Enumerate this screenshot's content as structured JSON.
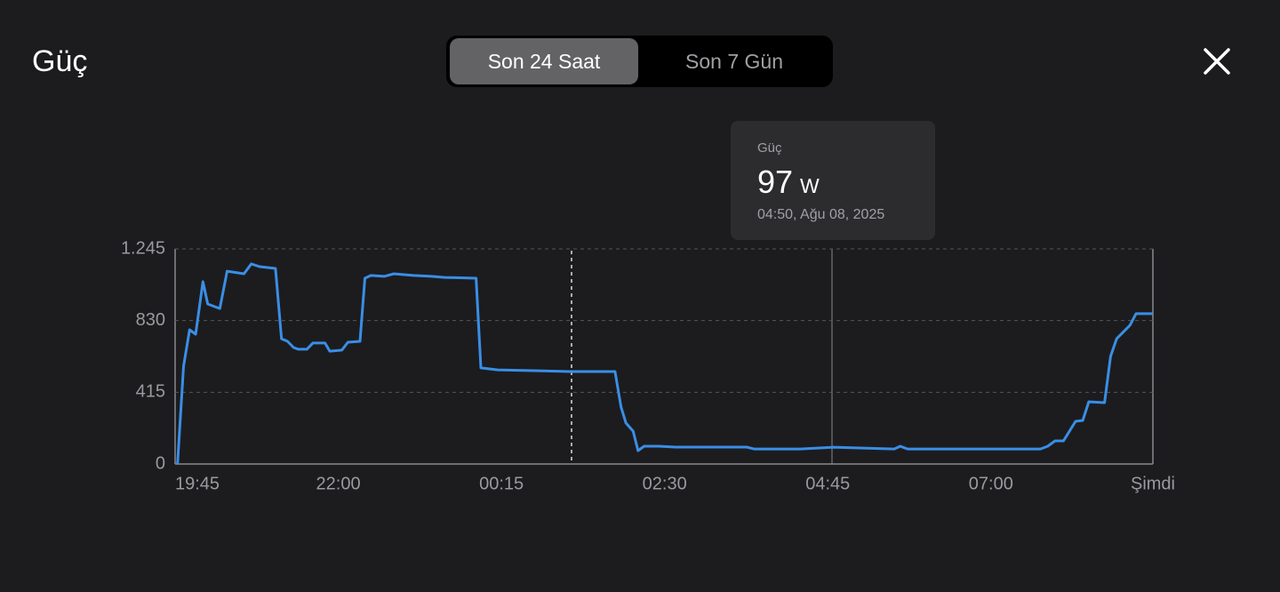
{
  "header": {
    "title": "Güç",
    "segments": [
      "Son 24 Saat",
      "Son 7 Gün"
    ]
  },
  "tooltip": {
    "label": "Güç",
    "value": 97,
    "unit": "W",
    "date": "04:50, Ağu 08, 2025"
  },
  "chart_data": {
    "type": "line",
    "color": "#3a8ee6",
    "grid": true,
    "x": [
      "19:47",
      "19:52",
      "19:57",
      "20:02",
      "20:08",
      "20:12",
      "20:22",
      "20:28",
      "20:42",
      "20:48",
      "20:55",
      "21:08",
      "21:13",
      "21:18",
      "21:23",
      "21:27",
      "21:34",
      "21:39",
      "21:49",
      "21:53",
      "22:03",
      "22:08",
      "22:18",
      "22:22",
      "22:27",
      "22:38",
      "22:46",
      "23:02",
      "23:17",
      "23:28",
      "23:54",
      "23:58",
      "00:12",
      "00:42",
      "01:11",
      "01:40",
      "01:49",
      "01:54",
      "01:58",
      "02:04",
      "02:08",
      "02:13",
      "02:25",
      "02:39",
      "03:09",
      "03:38",
      "03:44",
      "04:22",
      "04:50",
      "05:40",
      "05:45",
      "05:51",
      "06:50",
      "07:41",
      "07:47",
      "07:53",
      "08:00",
      "08:10",
      "08:16",
      "08:21",
      "08:34",
      "08:39",
      "08:44",
      "08:55",
      "09:00",
      "09:14"
    ],
    "values": [
      0,
      566,
      777,
      751,
      1055,
      926,
      900,
      1116,
      1101,
      1158,
      1142,
      1132,
      725,
      710,
      674,
      664,
      664,
      700,
      700,
      653,
      659,
      705,
      710,
      1075,
      1091,
      1086,
      1101,
      1091,
      1086,
      1080,
      1075,
      556,
      545,
      540,
      535,
      535,
      535,
      329,
      237,
      190,
      77,
      103,
      103,
      98,
      98,
      98,
      87,
      87,
      97,
      87,
      103,
      87,
      87,
      87,
      103,
      134,
      134,
      247,
      252,
      360,
      355,
      623,
      725,
      803,
      870,
      870
    ],
    "xlim": [
      "19:45",
      "09:14"
    ],
    "xticks": [
      "19:45",
      "22:00",
      "00:15",
      "02:30",
      "04:45",
      "07:00",
      {
        "value": "09:14",
        "label": "Şimdi"
      }
    ],
    "ylim": [
      0,
      1245
    ],
    "yticks": [
      0,
      415,
      830,
      {
        "value": 1245,
        "label": "1.245"
      }
    ]
  }
}
